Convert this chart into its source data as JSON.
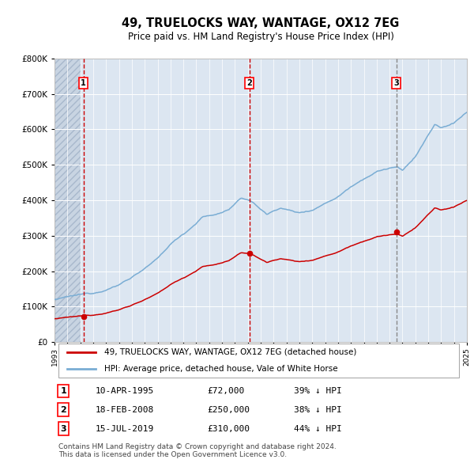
{
  "title": "49, TRUELOCKS WAY, WANTAGE, OX12 7EG",
  "subtitle": "Price paid vs. HM Land Registry's House Price Index (HPI)",
  "hpi_label": "HPI: Average price, detached house, Vale of White Horse",
  "property_label": "49, TRUELOCKS WAY, WANTAGE, OX12 7EG (detached house)",
  "transactions": [
    {
      "num": 1,
      "date": "10-APR-1995",
      "price": 72000,
      "pct": "39%",
      "dir": "↓"
    },
    {
      "num": 2,
      "date": "18-FEB-2008",
      "price": 250000,
      "pct": "38%",
      "dir": "↓"
    },
    {
      "num": 3,
      "date": "15-JUL-2019",
      "price": 310000,
      "pct": "44%",
      "dir": "↓"
    }
  ],
  "hpi_color": "#7aadd4",
  "property_color": "#cc0000",
  "bg_color": "#dce6f1",
  "grid_color": "#ffffff",
  "ylim": [
    0,
    800000
  ],
  "yticks": [
    0,
    100000,
    200000,
    300000,
    400000,
    500000,
    600000,
    700000,
    800000
  ],
  "footnote": "Contains HM Land Registry data © Crown copyright and database right 2024.\nThis data is licensed under the Open Government Licence v3.0.",
  "start_year": 1993,
  "end_year": 2025
}
